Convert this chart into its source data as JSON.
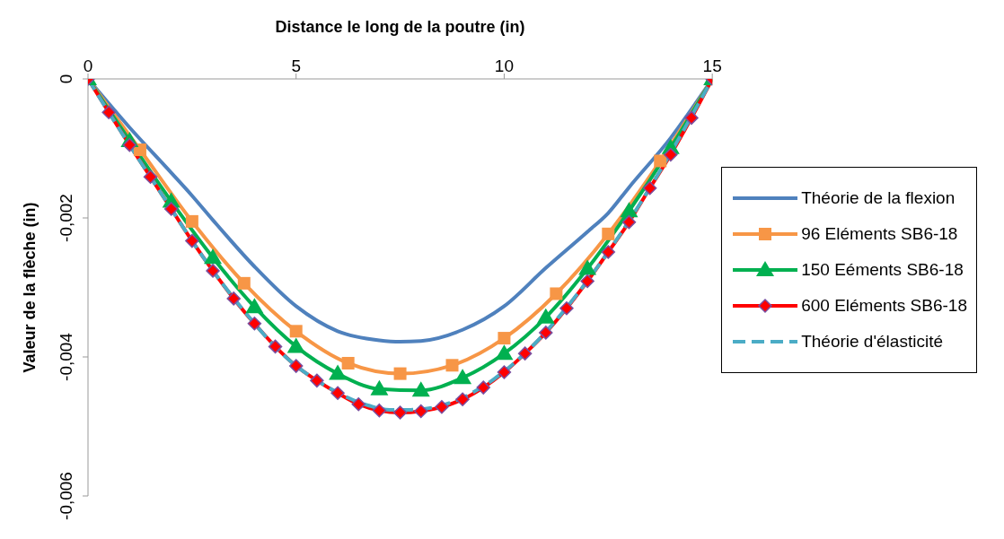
{
  "chart_data": {
    "type": "line",
    "xlabel": "Distance le long de la poutre (in)",
    "ylabel": "Valeur de la flèche  (in)",
    "xlim": [
      0,
      15
    ],
    "xticks": [
      0,
      5,
      10,
      15
    ],
    "ylim": [
      -0.006,
      0
    ],
    "yticks": [
      {
        "value": -0.006,
        "label": "-0,006"
      },
      {
        "value": -0.004,
        "label": "-0,004"
      },
      {
        "value": -0.002,
        "label": "-0,002"
      },
      0
    ],
    "legend": "right",
    "series": [
      {
        "name": "Théorie de la flexion",
        "color": "#4f81bd",
        "marker": "none",
        "line_style": "solid",
        "x": [
          0,
          1,
          2,
          2.5,
          3,
          4,
          5,
          6,
          7,
          7.5,
          8,
          9,
          10,
          11,
          12,
          12.5,
          13,
          14,
          15
        ],
        "values": [
          0,
          -0.0007,
          -0.00135,
          -0.00168,
          -0.00203,
          -0.0027,
          -0.00327,
          -0.00363,
          -0.00376,
          -0.00378,
          -0.00377,
          -0.00361,
          -0.00327,
          -0.00272,
          -0.0022,
          -0.00193,
          -0.00156,
          -0.00085,
          0
        ]
      },
      {
        "name": "96 Eléments SB6-18",
        "color": "#f79646",
        "marker": "square",
        "line_style": "solid",
        "x": [
          0,
          1.25,
          2.5,
          3.75,
          5,
          6.25,
          7.5,
          8.75,
          10,
          11.25,
          12.5,
          13.75,
          15
        ],
        "values": [
          0,
          -0.00102,
          -0.00205,
          -0.00294,
          -0.00363,
          -0.00409,
          -0.00424,
          -0.00412,
          -0.00373,
          -0.00309,
          -0.00223,
          -0.00118,
          0
        ]
      },
      {
        "name": "150 Eéments SB6-18",
        "color": "#00b050",
        "marker": "triangle",
        "line_style": "solid",
        "x": [
          0,
          1,
          2,
          3,
          4,
          5,
          6,
          7,
          8,
          9,
          10,
          11,
          12,
          13,
          14,
          15
        ],
        "values": [
          0,
          -0.00089,
          -0.00176,
          -0.00257,
          -0.00328,
          -0.00385,
          -0.00424,
          -0.00446,
          -0.00448,
          -0.0043,
          -0.00395,
          -0.00343,
          -0.00273,
          -0.0019,
          -0.00099,
          0
        ]
      },
      {
        "name": "600 Eléments SB6-18",
        "color": "#ff0000",
        "marker": "diamond",
        "line_style": "solid",
        "x": [
          0,
          0.5,
          1,
          1.5,
          2,
          2.5,
          3,
          3.5,
          4,
          4.5,
          5,
          5.5,
          6,
          6.5,
          7,
          7.5,
          8,
          8.5,
          9,
          9.5,
          10,
          10.5,
          11,
          11.5,
          12,
          12.5,
          13,
          13.5,
          14,
          14.5,
          15
        ],
        "values": [
          0,
          -0.00048,
          -0.00095,
          -0.00141,
          -0.00187,
          -0.00233,
          -0.00276,
          -0.00316,
          -0.00352,
          -0.00385,
          -0.00413,
          -0.00434,
          -0.00452,
          -0.00468,
          -0.00477,
          -0.0048,
          -0.00478,
          -0.00472,
          -0.00461,
          -0.00444,
          -0.00422,
          -0.00395,
          -0.00365,
          -0.0033,
          -0.00291,
          -0.00249,
          -0.00206,
          -0.00157,
          -0.00109,
          -0.00056,
          0
        ]
      },
      {
        "name": "Théorie d'élasticité",
        "color": "#4bacc6",
        "marker": "none",
        "line_style": "dashed",
        "x": [
          0,
          0.75,
          1.75,
          2.75,
          3.75,
          4.75,
          5.75,
          6.75,
          7.25,
          7.75,
          8.75,
          9.75,
          10.75,
          11.75,
          12.75,
          13.75,
          14.75,
          15
        ],
        "values": [
          0,
          -0.00072,
          -0.00164,
          -0.00255,
          -0.00334,
          -0.004,
          -0.00443,
          -0.0047,
          -0.00476,
          -0.00476,
          -0.00465,
          -0.00432,
          -0.0038,
          -0.0031,
          -0.00227,
          -0.00132,
          -0.00027,
          0
        ]
      }
    ]
  }
}
